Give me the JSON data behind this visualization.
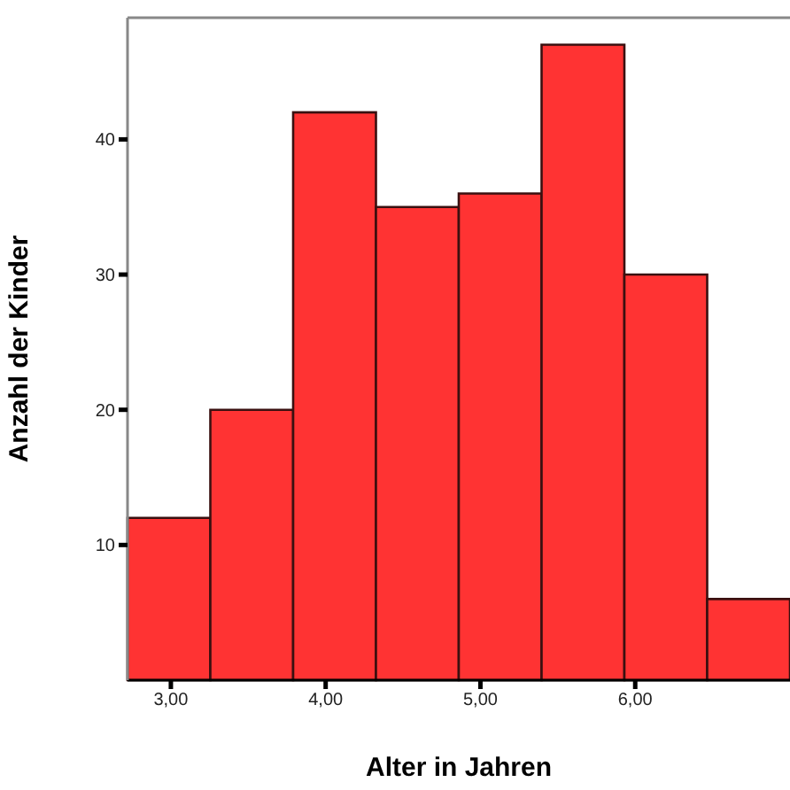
{
  "chart_data": {
    "type": "histogram",
    "xlabel": "Alter in Jahren",
    "ylabel": "Anzahl der Kinder",
    "bins": [
      2.72,
      3.255,
      3.79,
      4.325,
      4.86,
      5.395,
      5.93,
      6.465,
      7.0
    ],
    "values": [
      12,
      20,
      42,
      35,
      36,
      47,
      30,
      6
    ],
    "color": "#ff3333",
    "xlim": [
      2.72,
      7.0
    ],
    "ylim": [
      0,
      49
    ],
    "xticks": [
      {
        "value": 3,
        "label": "3,00"
      },
      {
        "value": 4,
        "label": "4,00"
      },
      {
        "value": 5,
        "label": "5,00"
      },
      {
        "value": 6,
        "label": "6,00"
      }
    ],
    "yticks": [
      10,
      20,
      30,
      40
    ],
    "grid": false
  }
}
